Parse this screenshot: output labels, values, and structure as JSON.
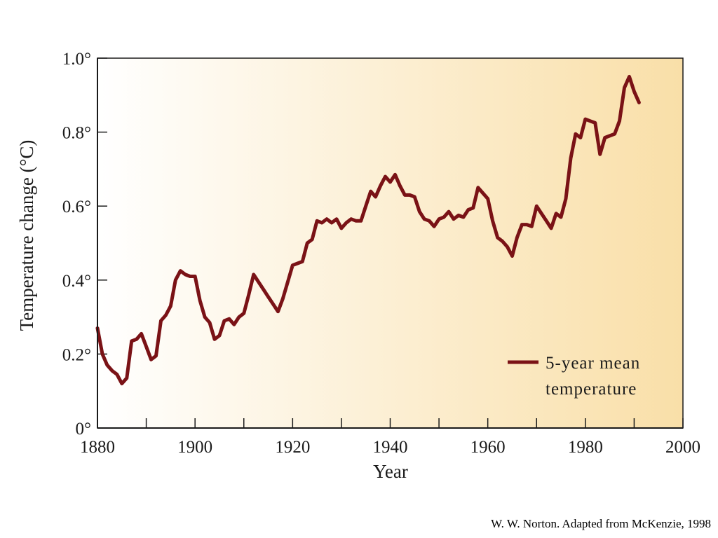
{
  "chart_data": {
    "type": "line",
    "title": "",
    "xlabel": "Year",
    "ylabel": "Temperature change (°C)",
    "xlim": [
      1880,
      2000
    ],
    "ylim": [
      0,
      1.0
    ],
    "x_ticks": [
      1880,
      1900,
      1920,
      1940,
      1960,
      1980,
      2000
    ],
    "x_tick_labels": [
      "1880",
      "1900",
      "1920",
      "1940",
      "1960",
      "1980",
      "2000"
    ],
    "y_ticks": [
      0,
      0.2,
      0.4,
      0.6,
      0.8,
      1.0
    ],
    "y_tick_labels": [
      "0°",
      "0.2°",
      "0.4°",
      "0.6°",
      "0.8°",
      "1.0°"
    ],
    "legend": {
      "position": "bottom-right",
      "label_line1": "5-year mean",
      "label_line2": "temperature"
    },
    "colors": {
      "line": "#7a1216",
      "background_start": "#ffffff",
      "background_end": "#f9dfa8"
    },
    "grid": false,
    "series": [
      {
        "name": "5-year mean temperature",
        "x": [
          1880,
          1881,
          1882,
          1883,
          1884,
          1885,
          1886,
          1887,
          1888,
          1889,
          1890,
          1891,
          1892,
          1893,
          1894,
          1895,
          1896,
          1897,
          1898,
          1899,
          1900,
          1901,
          1902,
          1903,
          1904,
          1905,
          1906,
          1907,
          1908,
          1909,
          1910,
          1911,
          1912,
          1913,
          1914,
          1915,
          1916,
          1917,
          1918,
          1919,
          1920,
          1921,
          1922,
          1923,
          1924,
          1925,
          1926,
          1927,
          1928,
          1929,
          1930,
          1931,
          1932,
          1933,
          1934,
          1935,
          1936,
          1937,
          1938,
          1939,
          1940,
          1941,
          1942,
          1943,
          1944,
          1945,
          1946,
          1947,
          1948,
          1949,
          1950,
          1951,
          1952,
          1953,
          1954,
          1955,
          1956,
          1957,
          1958,
          1959,
          1960,
          1961,
          1962,
          1963,
          1964,
          1965,
          1966,
          1967,
          1968,
          1969,
          1970,
          1971,
          1972,
          1973,
          1974,
          1975,
          1976,
          1977,
          1978,
          1979,
          1980,
          1981,
          1982,
          1983,
          1984,
          1985,
          1986,
          1987,
          1988,
          1989,
          1990,
          1991
        ],
        "values": [
          0.27,
          0.2,
          0.17,
          0.155,
          0.145,
          0.12,
          0.135,
          0.235,
          0.24,
          0.255,
          0.22,
          0.185,
          0.195,
          0.29,
          0.305,
          0.33,
          0.4,
          0.425,
          0.415,
          0.41,
          0.41,
          0.345,
          0.3,
          0.285,
          0.24,
          0.25,
          0.29,
          0.295,
          0.28,
          0.3,
          0.31,
          0.36,
          0.415,
          0.395,
          0.375,
          0.355,
          0.335,
          0.315,
          0.35,
          0.395,
          0.44,
          0.445,
          0.45,
          0.5,
          0.51,
          0.56,
          0.555,
          0.565,
          0.555,
          0.565,
          0.54,
          0.555,
          0.565,
          0.56,
          0.56,
          0.6,
          0.64,
          0.625,
          0.655,
          0.68,
          0.665,
          0.685,
          0.655,
          0.63,
          0.63,
          0.625,
          0.585,
          0.565,
          0.56,
          0.545,
          0.565,
          0.57,
          0.585,
          0.565,
          0.575,
          0.57,
          0.59,
          0.595,
          0.65,
          0.635,
          0.62,
          0.56,
          0.515,
          0.505,
          0.49,
          0.465,
          0.515,
          0.55,
          0.55,
          0.545,
          0.6,
          0.58,
          0.56,
          0.54,
          0.58,
          0.57,
          0.62,
          0.73,
          0.795,
          0.785,
          0.835,
          0.83,
          0.825,
          0.74,
          0.785,
          0.79,
          0.795,
          0.83,
          0.92,
          0.95,
          0.91,
          0.88
        ]
      }
    ]
  },
  "credit": "W. W. Norton. Adapted from McKenzie, 1998"
}
